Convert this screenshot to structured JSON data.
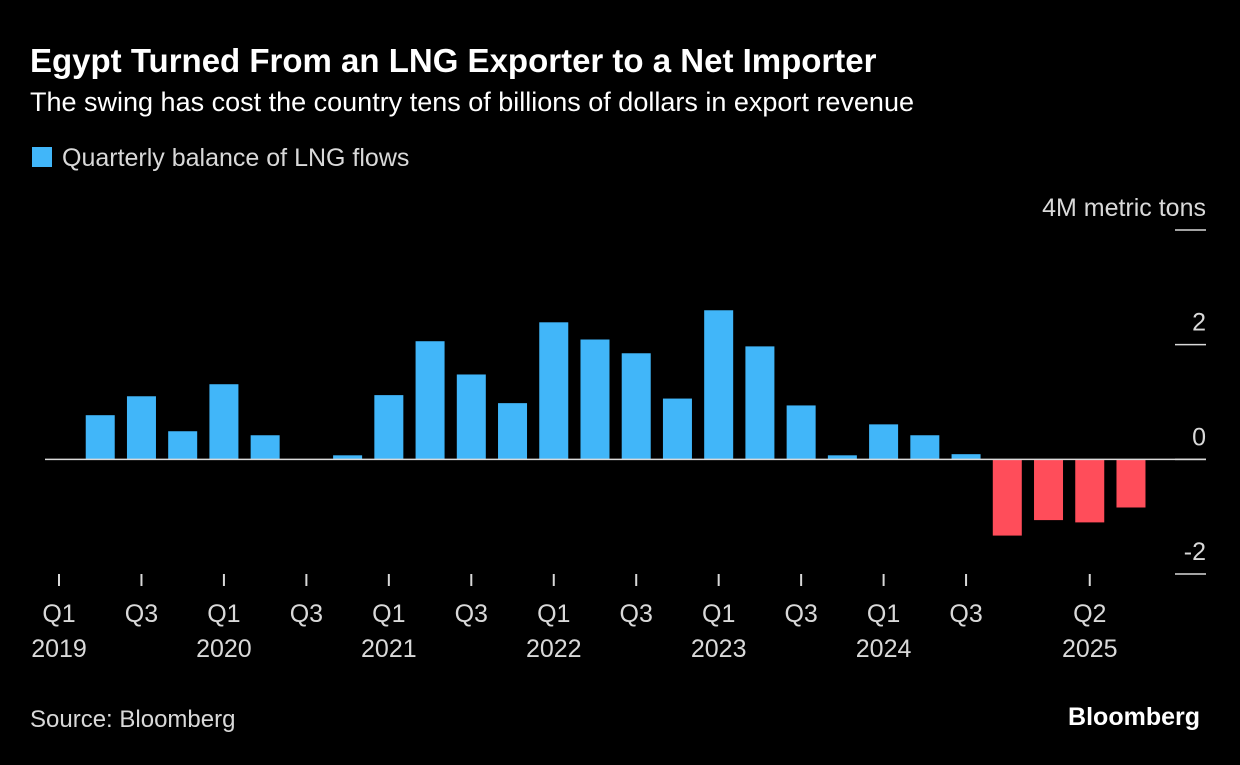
{
  "chart_data": {
    "type": "bar",
    "title": "Egypt Turned From an LNG Exporter to a Net Importer",
    "subtitle": "The swing has cost the country tens of billions of dollars in export revenue",
    "legend": "Quarterly balance of LNG flows",
    "source": "Source: Bloomberg",
    "brand": "Bloomberg",
    "categories": [
      "Q1",
      null,
      "Q3",
      null,
      "Q1",
      null,
      "Q3",
      null,
      "Q1",
      null,
      "Q3",
      null,
      "Q1",
      null,
      "Q3",
      null,
      "Q1",
      null,
      "Q3",
      null,
      "Q1",
      null,
      "Q3",
      null,
      null,
      "Q2",
      null
    ],
    "category_years": [
      "2019",
      null,
      null,
      null,
      "2020",
      null,
      null,
      null,
      "2021",
      null,
      null,
      null,
      "2022",
      null,
      null,
      null,
      "2023",
      null,
      null,
      null,
      "2024",
      null,
      null,
      null,
      null,
      "2025",
      null
    ],
    "values": [
      0,
      0.77,
      1.1,
      0.49,
      1.31,
      0.42,
      0,
      0.07,
      1.12,
      2.06,
      1.48,
      0.98,
      2.39,
      2.09,
      1.85,
      1.06,
      2.6,
      1.97,
      0.94,
      0.07,
      0.61,
      0.42,
      0.09,
      -1.33,
      -1.06,
      -1.1,
      -0.84
    ],
    "positive_color": "#41b6f9",
    "negative_color": "#ff4d5a",
    "ylim": [
      -2,
      4
    ],
    "yticks": [
      {
        "value": 4,
        "label": "4M metric tons"
      },
      2,
      0,
      -2
    ]
  }
}
